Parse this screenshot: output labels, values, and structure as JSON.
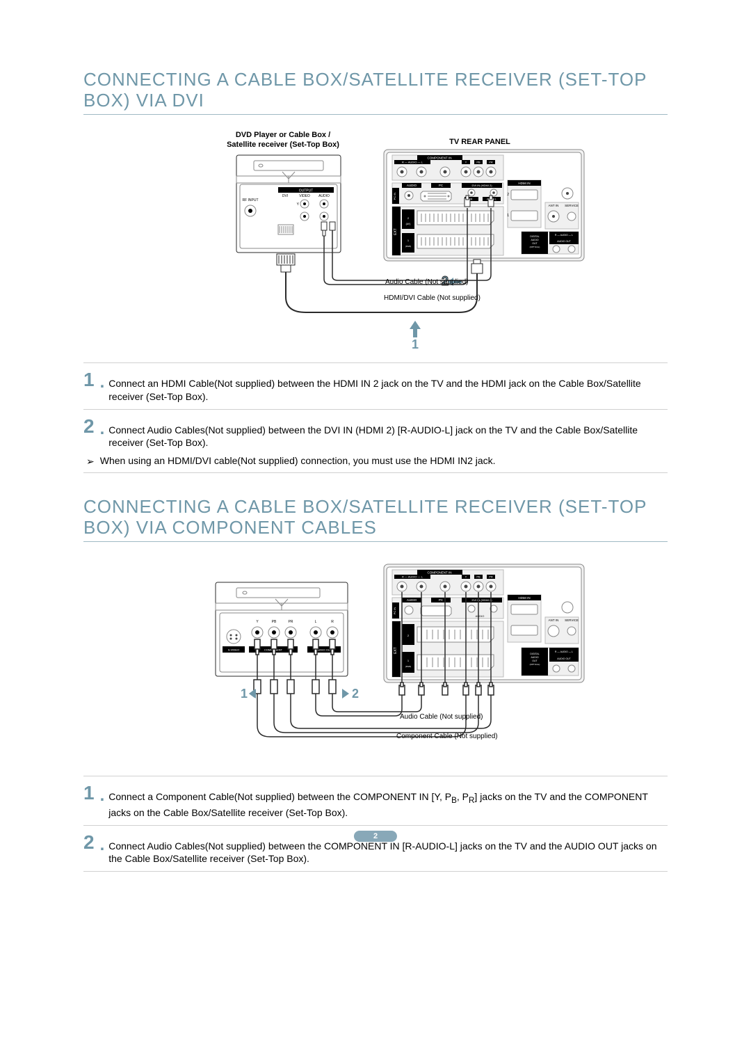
{
  "colors": {
    "heading": "#6f97a8",
    "heading_rule": "#9fb9c4",
    "step_number": "#6f97a8",
    "accent": "#6f97a8",
    "rule": "#d0d0d0",
    "diagram_stroke": "#2a2a2a",
    "diagram_light": "#9a9a9a",
    "label_bg_dark": "#000000",
    "label_text_light": "#ffffff",
    "page_pill_bg": "#88a8b8"
  },
  "section1": {
    "title": "CONNECTING A CABLE BOX/SATELLITE RECEIVER (SET-TOP BOX) VIA DVI",
    "diagram": {
      "source_label_line1": "DVD Player or Cable Box /",
      "source_label_line2": "Satellite receiver (Set-Top Box)",
      "tv_label": "TV REAR PANEL",
      "port_labels": {
        "component_in": "COMPONENT IN",
        "audio": "AUDIO",
        "pc": "PC",
        "pc_in": "PC IN",
        "dvi_in": "DVI IN (HDMI 2)",
        "hdmi_in": "HDMI IN",
        "ant_in": "ANT IN",
        "service": "SERVICE",
        "digital_audio_out": "DIGITAL AUDIO OUT (OPTICAL)",
        "ext1": "1 (RGB)",
        "ext2": "2 (AV)",
        "ext": "EXT",
        "av_out": "AUDIO OUT",
        "output": "OUTPUT",
        "dvi": "DVI",
        "video": "VIDEO",
        "ri_input": "RF INPUT",
        "r_audio_l": "R — AUDIO — L",
        "y": "Y",
        "pb": "PB",
        "pr": "PR"
      },
      "cable1": "Audio Cable (Not supplied)",
      "cable2": "HDMI/DVI Cable (Not supplied)",
      "marker1": "1",
      "marker2": "2"
    },
    "steps": [
      {
        "n": "1",
        "text": "Connect an HDMI Cable(Not supplied) between the HDMI IN 2 jack on the TV and the HDMI jack on the Cable Box/Satellite receiver (Set-Top Box)."
      },
      {
        "n": "2",
        "text": "Connect Audio Cables(Not supplied) between the DVI IN (HDMI 2) [R-AUDIO-L] jack on the TV and the Cable Box/Satellite receiver (Set-Top Box)."
      }
    ],
    "note": "When using an HDMI/DVI cable(Not supplied) connection, you must use the HDMI IN2 jack."
  },
  "section2": {
    "title": "CONNECTING A CABLE BOX/SATELLITE RECEIVER (SET-TOP BOX) VIA COMPONENT CABLES",
    "diagram": {
      "port_labels": {
        "svideo": "S-VIDEO",
        "component": "COMPONENT",
        "audio_out": "AUDIO OUT",
        "y": "Y",
        "pb": "PB",
        "pr": "PR",
        "l": "L",
        "r": "R"
      },
      "cable1": "Audio Cable (Not supplied)",
      "cable2": "Component Cable (Not supplied)",
      "marker1": "1",
      "marker2": "2"
    },
    "steps": [
      {
        "n": "1",
        "text_html": "Connect a Component Cable(Not supplied) between the COMPONENT IN [Y, P<sub>B</sub>, P<sub>R</sub>] jacks on the TV and the COMPONENT jacks on the Cable Box/Satellite receiver (Set-Top Box)."
      },
      {
        "n": "2",
        "text": "Connect Audio Cables(Not supplied) between the COMPONENT IN [R-AUDIO-L] jacks on the TV and the AUDIO OUT jacks on the Cable Box/Satellite receiver (Set-Top Box)."
      }
    ]
  },
  "page_number": "2"
}
